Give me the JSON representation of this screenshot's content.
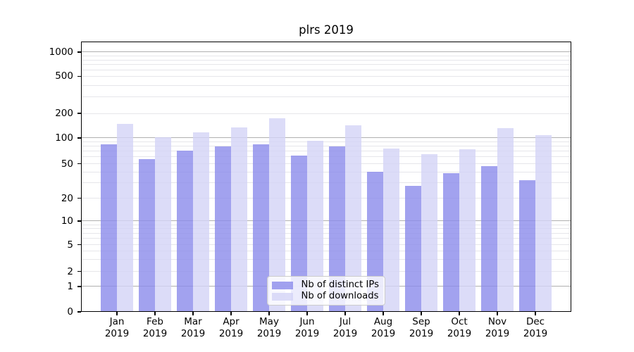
{
  "title": "plrs 2019",
  "colors": {
    "ips_bar": "rgba(139,139,235,0.8)",
    "downloads_bar": "rgba(211,211,246,0.8)",
    "grid_major": "#b0b0b0",
    "grid_minor": "#e6e6ea",
    "axis": "#000000",
    "legend_border": "#cccccc",
    "background": "#ffffff"
  },
  "legend": {
    "items": [
      {
        "label": "Nb of distinct IPs",
        "color_key": "ips_bar"
      },
      {
        "label": "Nb of downloads",
        "color_key": "downloads_bar"
      }
    ]
  },
  "chart_data": {
    "type": "bar",
    "title": "plrs 2019",
    "year": "2019",
    "months": [
      "Jan",
      "Feb",
      "Mar",
      "Apr",
      "May",
      "Jun",
      "Jul",
      "Aug",
      "Sep",
      "Oct",
      "Nov",
      "Dec"
    ],
    "categories": [
      "Jan 2019",
      "Feb 2019",
      "Mar 2019",
      "Apr 2019",
      "May 2019",
      "Jun 2019",
      "Jul 2019",
      "Aug 2019",
      "Sep 2019",
      "Oct 2019",
      "Nov 2019",
      "Dec 2019"
    ],
    "series": [
      {
        "name": "Nb of distinct IPs",
        "values": [
          84,
          57,
          71,
          79,
          84,
          62,
          79,
          40,
          28,
          39,
          47,
          32
        ]
      },
      {
        "name": "Nb of downloads",
        "values": [
          150,
          101,
          117,
          134,
          175,
          93,
          143,
          75,
          65,
          74,
          133,
          108
        ]
      }
    ],
    "xlabel": "",
    "ylabel": "",
    "yscale": "symlog",
    "ytick_values": [
      0,
      1,
      2,
      5,
      10,
      20,
      50,
      100,
      200,
      500,
      1000
    ],
    "ytick_labels": [
      "0",
      "1",
      "2",
      "5",
      "10",
      "20",
      "50",
      "100",
      "200",
      "500",
      "1000"
    ],
    "ylim": [
      0,
      1300
    ],
    "grid": "horizontal major + log minor",
    "legend_position": "lower center inside axes"
  }
}
